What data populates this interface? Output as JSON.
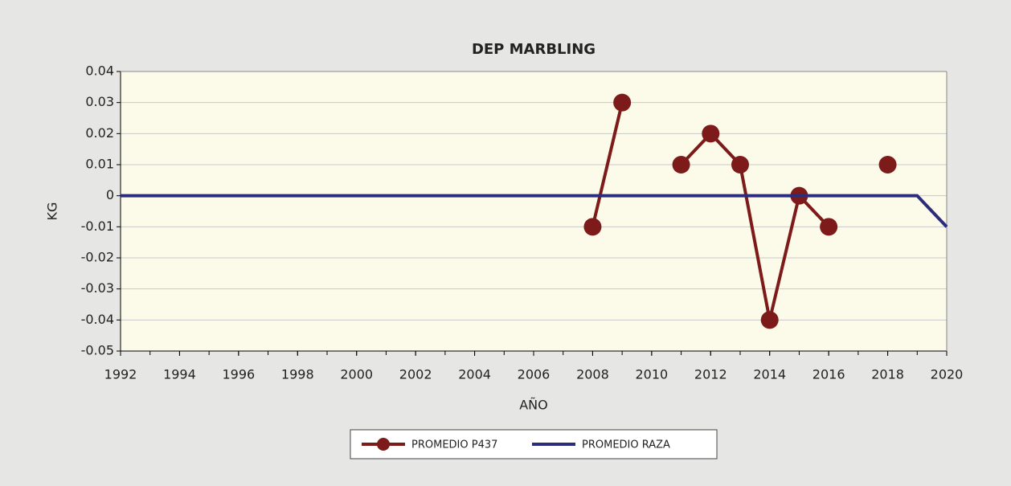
{
  "chart_data": {
    "type": "line",
    "title": "DEP MARBLING",
    "x_label": "AÑO",
    "y_label": "KG",
    "x": [
      1992,
      1993,
      1994,
      1995,
      1996,
      1997,
      1998,
      1999,
      2000,
      2001,
      2002,
      2003,
      2004,
      2005,
      2006,
      2007,
      2008,
      2009,
      2010,
      2011,
      2012,
      2013,
      2014,
      2015,
      2016,
      2017,
      2018,
      2019,
      2020
    ],
    "series": [
      {
        "name": "PROMEDIO P437",
        "color": "#7d1a1a",
        "markers": true,
        "values": [
          null,
          null,
          null,
          null,
          null,
          null,
          null,
          null,
          null,
          null,
          null,
          null,
          null,
          null,
          null,
          null,
          -0.01,
          0.03,
          null,
          0.01,
          0.02,
          0.01,
          -0.04,
          0,
          -0.01,
          null,
          0.01,
          null,
          null
        ]
      },
      {
        "name": "PROMEDIO RAZA",
        "color": "#2b2d7c",
        "markers": false,
        "values": [
          0,
          0,
          0,
          0,
          0,
          0,
          0,
          0,
          0,
          0,
          0,
          0,
          0,
          0,
          0,
          0,
          0,
          0,
          0,
          0,
          0,
          0,
          0,
          0,
          0,
          0,
          0,
          0,
          -0.01
        ]
      }
    ],
    "xlim": [
      1992,
      2020
    ],
    "xticks": [
      1992,
      1994,
      1996,
      1998,
      2000,
      2002,
      2004,
      2006,
      2008,
      2010,
      2012,
      2014,
      2016,
      2018,
      2020
    ],
    "ylim": [
      -0.05,
      0.04
    ],
    "yticks": [
      -0.05,
      -0.04,
      -0.03,
      -0.02,
      -0.01,
      0,
      0.01,
      0.02,
      0.03,
      0.04
    ],
    "grid": true
  }
}
